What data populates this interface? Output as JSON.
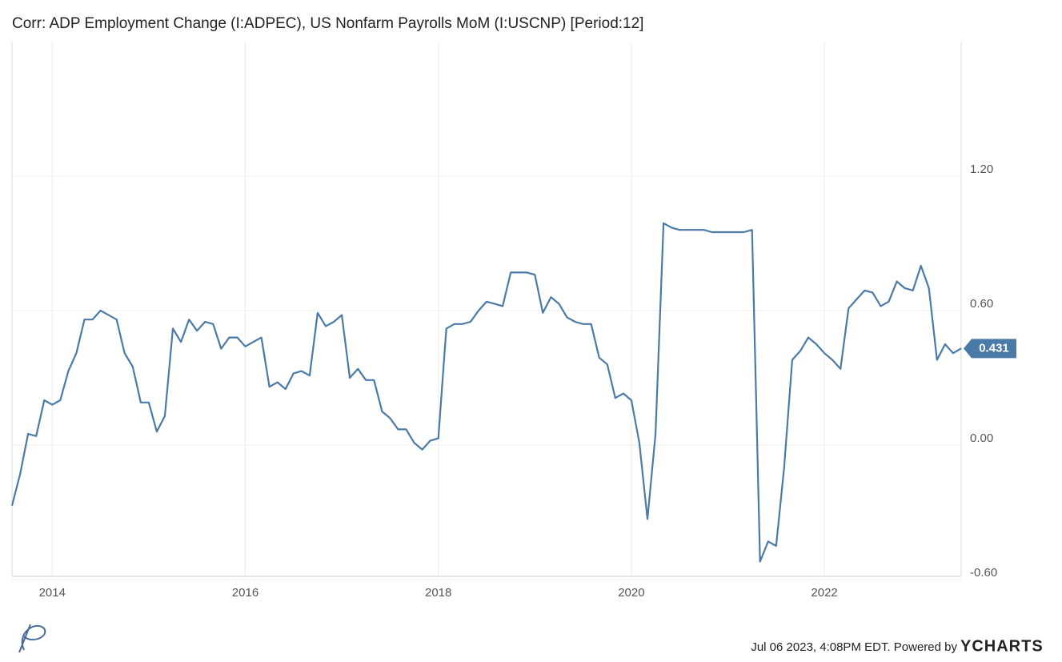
{
  "chart_data": {
    "type": "line",
    "title": "Corr: ADP Employment Change (I:ADPEC), US Nonfarm Payrolls MoM (I:USCNP) [Period:12]",
    "footer": "Jul 06 2023, 4:08PM EDT. Powered by",
    "brand": "YCHARTS",
    "color": "#4a7aa7",
    "x": [
      2013.583,
      2013.667,
      2013.75,
      2013.833,
      2013.917,
      2014.0,
      2014.083,
      2014.167,
      2014.25,
      2014.333,
      2014.417,
      2014.5,
      2014.583,
      2014.667,
      2014.75,
      2014.833,
      2014.917,
      2015.0,
      2015.083,
      2015.167,
      2015.25,
      2015.333,
      2015.417,
      2015.5,
      2015.583,
      2015.667,
      2015.75,
      2015.833,
      2015.917,
      2016.0,
      2016.083,
      2016.167,
      2016.25,
      2016.333,
      2016.417,
      2016.5,
      2016.583,
      2016.667,
      2016.75,
      2016.833,
      2016.917,
      2017.0,
      2017.083,
      2017.167,
      2017.25,
      2017.333,
      2017.417,
      2017.5,
      2017.583,
      2017.667,
      2017.75,
      2017.833,
      2017.917,
      2018.0,
      2018.083,
      2018.167,
      2018.25,
      2018.333,
      2018.417,
      2018.5,
      2018.583,
      2018.667,
      2018.75,
      2018.833,
      2018.917,
      2019.0,
      2019.083,
      2019.167,
      2019.25,
      2019.333,
      2019.417,
      2019.5,
      2019.583,
      2019.667,
      2019.75,
      2019.833,
      2019.917,
      2020.0,
      2020.083,
      2020.167,
      2020.25,
      2020.333,
      2020.417,
      2020.5,
      2020.583,
      2020.667,
      2020.75,
      2020.833,
      2020.917,
      2021.0,
      2021.083,
      2021.167,
      2021.25,
      2021.333,
      2021.417,
      2021.5,
      2021.583,
      2021.667,
      2021.75,
      2021.833,
      2021.917,
      2022.0,
      2022.083,
      2022.167,
      2022.25,
      2022.333,
      2022.417,
      2022.5,
      2022.583,
      2022.667,
      2022.75,
      2022.833,
      2022.917,
      2023.0,
      2023.083,
      2023.167,
      2023.25,
      2023.333,
      2023.417
    ],
    "values": [
      -0.27,
      -0.13,
      0.05,
      0.04,
      0.2,
      0.18,
      0.2,
      0.33,
      0.41,
      0.56,
      0.56,
      0.6,
      0.58,
      0.56,
      0.41,
      0.35,
      0.19,
      0.19,
      0.06,
      0.13,
      0.52,
      0.46,
      0.56,
      0.51,
      0.55,
      0.54,
      0.43,
      0.48,
      0.48,
      0.44,
      0.46,
      0.48,
      0.26,
      0.28,
      0.25,
      0.32,
      0.33,
      0.31,
      0.59,
      0.53,
      0.55,
      0.58,
      0.3,
      0.34,
      0.29,
      0.29,
      0.15,
      0.12,
      0.07,
      0.07,
      0.01,
      -0.02,
      0.02,
      0.03,
      0.52,
      0.54,
      0.54,
      0.55,
      0.6,
      0.64,
      0.63,
      0.62,
      0.77,
      0.77,
      0.77,
      0.76,
      0.59,
      0.66,
      0.63,
      0.57,
      0.55,
      0.54,
      0.54,
      0.39,
      0.36,
      0.21,
      0.23,
      0.2,
      0.01,
      -0.33,
      0.05,
      0.99,
      0.97,
      0.96,
      0.96,
      0.96,
      0.96,
      0.95,
      0.95,
      0.95,
      0.95,
      0.95,
      0.96,
      -0.52,
      -0.43,
      -0.45,
      -0.1,
      0.38,
      0.42,
      0.48,
      0.45,
      0.41,
      0.38,
      0.34,
      0.61,
      0.65,
      0.69,
      0.68,
      0.62,
      0.64,
      0.73,
      0.7,
      0.69,
      0.8,
      0.7,
      0.38,
      0.45,
      0.41,
      0.431
    ],
    "xlim": [
      2013.583,
      2023.417
    ],
    "ylim": [
      -0.6,
      1.8
    ],
    "xticks": [
      2014,
      2016,
      2018,
      2020,
      2022
    ],
    "yticks": [
      {
        "value": -0.6,
        "label": "-0.60"
      },
      {
        "value": 0,
        "label": "0.00"
      },
      {
        "value": 0.6,
        "label": "0.60"
      },
      {
        "value": 1.2,
        "label": "1.20"
      }
    ],
    "grid": true
  }
}
